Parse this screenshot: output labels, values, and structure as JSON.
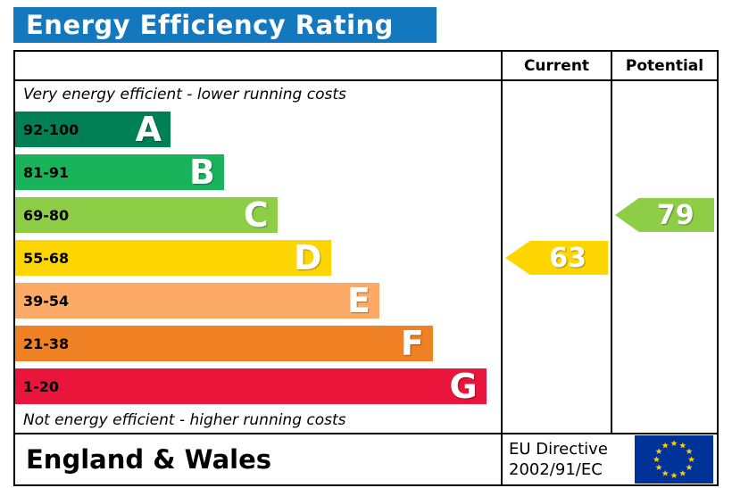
{
  "title": "Energy Efficiency Rating",
  "colors": {
    "title_bar": "#1478be",
    "title_text": "#ffffff",
    "flag_blue": "#003399",
    "flag_star": "#ffcc00"
  },
  "header": {
    "current": "Current",
    "potential": "Potential"
  },
  "notes": {
    "top": "Very energy efficient - lower running costs",
    "bottom": "Not energy efficient - higher running costs"
  },
  "bands": [
    {
      "letter": "A",
      "range": "92-100",
      "color": "#008054",
      "width_pct": 32
    },
    {
      "letter": "B",
      "range": "81-91",
      "color": "#19b459",
      "width_pct": 43
    },
    {
      "letter": "C",
      "range": "69-80",
      "color": "#8dce46",
      "width_pct": 54
    },
    {
      "letter": "D",
      "range": "55-68",
      "color": "#ffd500",
      "width_pct": 65
    },
    {
      "letter": "E",
      "range": "39-54",
      "color": "#fcaa65",
      "width_pct": 75
    },
    {
      "letter": "F",
      "range": "21-38",
      "color": "#ef8023",
      "width_pct": 86
    },
    {
      "letter": "G",
      "range": "1-20",
      "color": "#e9153b",
      "width_pct": 97
    }
  ],
  "current": {
    "value": "63",
    "band": "D",
    "color": "#ffd500"
  },
  "potential": {
    "value": "79",
    "band": "C",
    "color": "#8dce46"
  },
  "footer": {
    "region": "England & Wales",
    "directive": [
      "EU Directive",
      "2002/91/EC"
    ]
  },
  "chart_data": {
    "type": "bar",
    "title": "Energy Efficiency Rating",
    "categories": [
      "A",
      "B",
      "C",
      "D",
      "E",
      "F",
      "G"
    ],
    "band_ranges": [
      "92-100",
      "81-91",
      "69-80",
      "55-68",
      "39-54",
      "21-38",
      "1-20"
    ],
    "band_colors": [
      "#008054",
      "#19b459",
      "#8dce46",
      "#ffd500",
      "#fcaa65",
      "#ef8023",
      "#e9153b"
    ],
    "scale": [
      1,
      100
    ],
    "series": [
      {
        "name": "Current",
        "value": 63,
        "band": "D"
      },
      {
        "name": "Potential",
        "value": 79,
        "band": "C"
      }
    ],
    "notes": [
      "Very energy efficient - lower running costs",
      "Not energy efficient - higher running costs"
    ],
    "footer": "England & Wales, EU Directive 2002/91/EC"
  }
}
